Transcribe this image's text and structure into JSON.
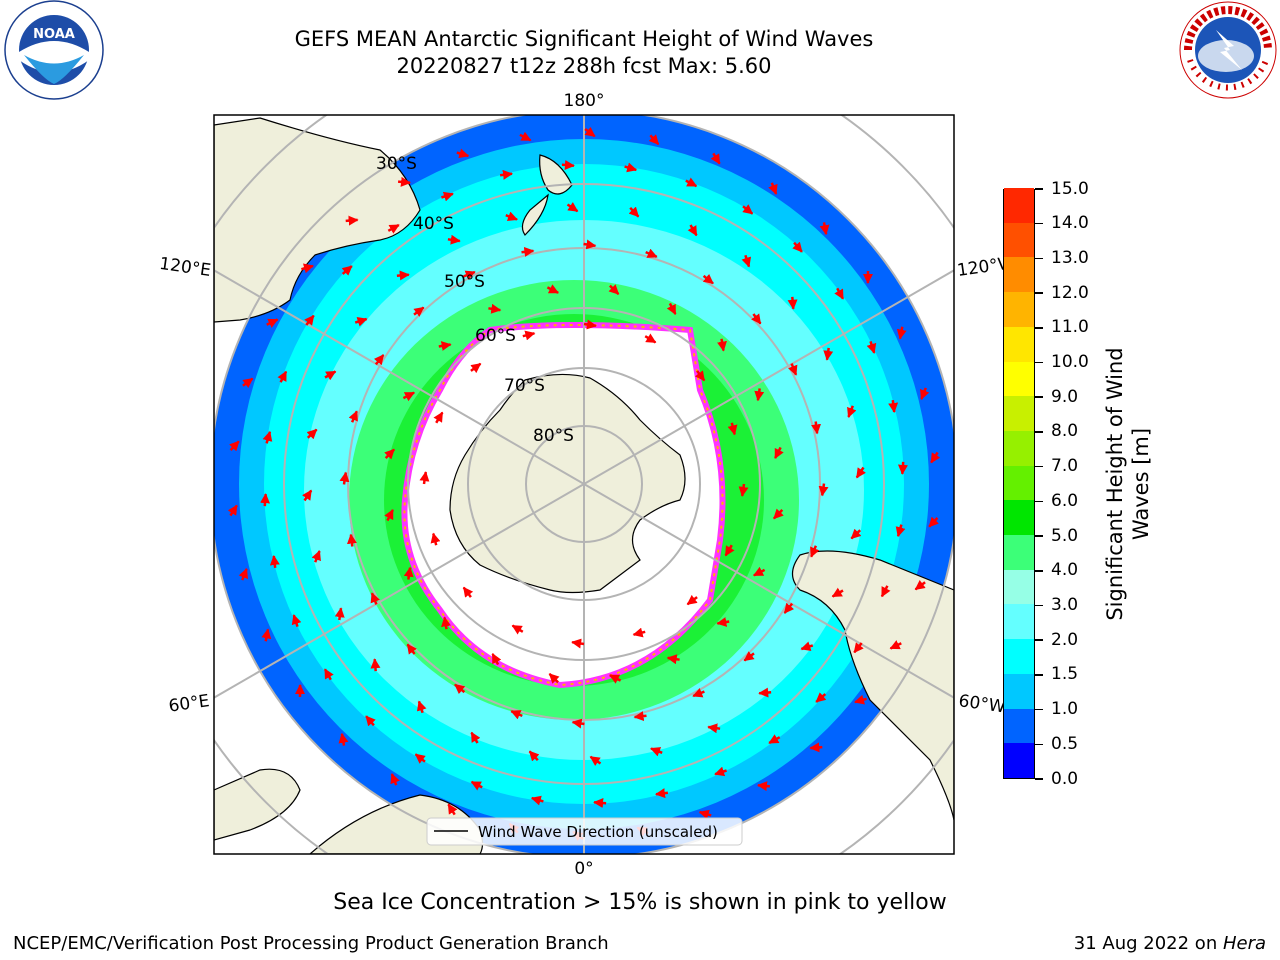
{
  "title": {
    "line1": "GEFS MEAN Antarctic Significant Height of Wind Waves",
    "line2": "20220827 t12z 288h fcst   Max: 5.60"
  },
  "logos": {
    "left": "noaa-logo",
    "right": "nws-logo"
  },
  "map": {
    "projection": "south-polar-stereographic",
    "longitude_labels": {
      "top": "180°",
      "bottom": "0°",
      "upper_left": "120°E",
      "upper_right": "120°W",
      "lower_left": "60°E",
      "lower_right": "60°W"
    },
    "latitude_labels": [
      "30°S",
      "40°S",
      "50°S",
      "60°S",
      "70°S",
      "80°S"
    ],
    "legend_label": "Wind Wave Direction (unscaled)",
    "arrow_color": "#ff0000"
  },
  "colorbar": {
    "title": "Significant Height of Wind Waves [m]",
    "ticks": [
      "0.0",
      "0.5",
      "1.0",
      "1.5",
      "2.0",
      "3.0",
      "4.0",
      "5.0",
      "6.0",
      "7.0",
      "8.0",
      "9.0",
      "10.0",
      "11.0",
      "12.0",
      "13.0",
      "14.0",
      "15.0"
    ],
    "colors": [
      "#0000ff",
      "#0064ff",
      "#00c8ff",
      "#00ffff",
      "#64ffff",
      "#96ffe6",
      "#3cff78",
      "#00e600",
      "#64f000",
      "#96f000",
      "#c8f000",
      "#ffff00",
      "#ffe600",
      "#ffb400",
      "#ff8c00",
      "#ff5000",
      "#ff2800"
    ]
  },
  "footer": {
    "ice_note": "Sea Ice Concentration > 15% is shown in pink to yellow",
    "credit": "NCEP/EMC/Verification Post Processing Product Generation Branch",
    "date_prefix": "31 Aug 2022 on ",
    "date_machine": "Hera"
  }
}
